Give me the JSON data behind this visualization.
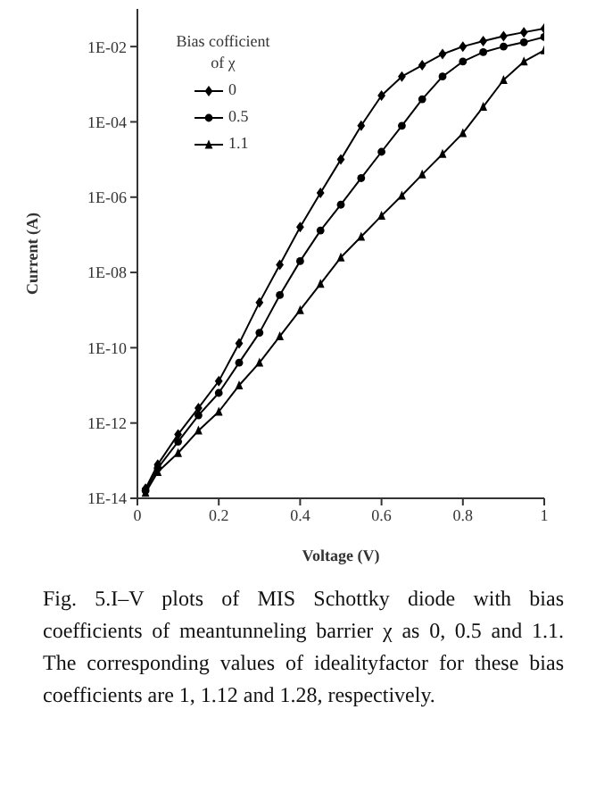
{
  "chart_data": {
    "type": "line",
    "xlabel": "Voltage (V)",
    "ylabel": "Current (A)",
    "legend_title": "Bias cofficient of χ",
    "legend": "top left",
    "log": "y",
    "grid": false,
    "line_style": "solid",
    "xlim": [
      0,
      1
    ],
    "xticks": [
      0,
      0.2,
      0.4,
      0.6,
      0.8,
      1
    ],
    "ylim": [
      1e-14,
      0.1
    ],
    "yticks": [
      {
        "value": 1e-14,
        "label": "1E-14"
      },
      {
        "value": 1e-12,
        "label": "1E-12"
      },
      {
        "value": 1e-10,
        "label": "1E-10"
      },
      {
        "value": 1e-08,
        "label": "1E-08"
      },
      {
        "value": 1e-06,
        "label": "1E-06"
      },
      {
        "value": 0.0001,
        "label": "1E-04"
      },
      {
        "value": 0.01,
        "label": "1E-02"
      }
    ],
    "x": [
      0.02,
      0.05,
      0.1,
      0.15,
      0.2,
      0.25,
      0.3,
      0.35,
      0.4,
      0.45,
      0.5,
      0.55,
      0.6,
      0.65,
      0.7,
      0.75,
      0.8,
      0.85,
      0.9,
      0.95,
      1.0
    ],
    "series": [
      {
        "name": "0",
        "color": "#000000",
        "marker": "diamond",
        "values": [
          1.8e-14,
          7.9e-14,
          5e-13,
          2.5e-12,
          1.3e-11,
          1.3e-10,
          1.6e-09,
          1.6e-08,
          1.6e-07,
          1.3e-06,
          1e-05,
          7.9e-05,
          0.0005,
          0.0016,
          0.0032,
          0.0063,
          0.01,
          0.014,
          0.019,
          0.024,
          0.03
        ]
      },
      {
        "name": "0.5",
        "color": "#000000",
        "marker": "circle",
        "values": [
          1.6e-14,
          6.3e-14,
          3.2e-13,
          1.6e-12,
          6.3e-12,
          4e-11,
          2.5e-10,
          2.5e-09,
          2e-08,
          1.3e-07,
          6.3e-07,
          3.2e-06,
          1.6e-05,
          7.9e-05,
          0.0004,
          0.0016,
          0.004,
          0.0071,
          0.01,
          0.013,
          0.018
        ]
      },
      {
        "name": "1.1",
        "color": "#000000",
        "marker": "triangle",
        "values": [
          1.4e-14,
          5e-14,
          1.6e-13,
          6.3e-13,
          2e-12,
          1e-11,
          4e-11,
          2e-10,
          1e-09,
          5e-09,
          2.5e-08,
          8.9e-08,
          3.2e-07,
          1.1e-06,
          4e-06,
          1.4e-05,
          5e-05,
          0.00025,
          0.0013,
          0.004,
          0.0079
        ]
      }
    ],
    "annotations": [
      "Fig. 5.I–V plots of MIS Schottky diode with bias coefficients of meantunneling barrier χ as  0, 0.5 and 1.1. The corresponding values of idealityfactor for these bias coefficients are 1, 1.12 and 1.28, respectively."
    ]
  }
}
